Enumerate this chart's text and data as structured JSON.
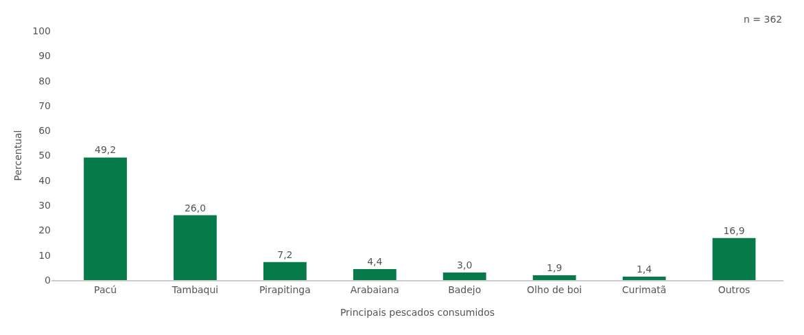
{
  "chart_data": {
    "type": "bar",
    "categories": [
      "Pacú",
      "Tambaqui",
      "Pirapitinga",
      "Arabaiana",
      "Badejo",
      "Olho de boi",
      "Curimatã",
      "Outros"
    ],
    "values": [
      49.2,
      26.0,
      7.2,
      4.4,
      3.0,
      1.9,
      1.4,
      16.9
    ],
    "value_labels": [
      "49,2",
      "26,0",
      "7,2",
      "4,4",
      "3,0",
      "1,9",
      "1,4",
      "16,9"
    ],
    "color": "#077a4a",
    "xlabel": "Principais pescados consumidos",
    "ylabel": "Percentual",
    "ylim": [
      0,
      100
    ],
    "yticks": [
      0,
      10,
      20,
      30,
      40,
      50,
      60,
      70,
      80,
      90,
      100
    ],
    "annotations": [
      "n = 362"
    ]
  }
}
